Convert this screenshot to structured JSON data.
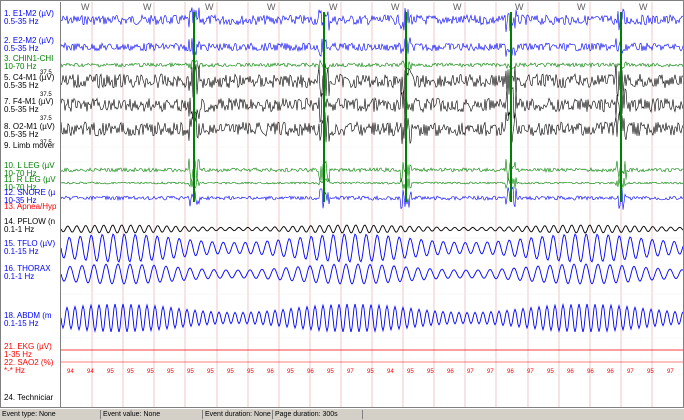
{
  "channels": [
    {
      "id": "e1m2",
      "name": "1. E1-M2 (µV)",
      "filter": "0.5-35 Hz",
      "color": "#0000ff"
    },
    {
      "id": "e2m2",
      "name": "2. E2-M2 (µV)",
      "filter": "0.5-35 Hz",
      "color": "#0000ff"
    },
    {
      "id": "chin",
      "name": "3. CHIN1-CHI",
      "filter": "10-70 Hz",
      "color": "#008000"
    },
    {
      "id": "c4m1",
      "name": "5. C4-M1 (µV)",
      "filter": "0.5-35 Hz",
      "color": "#000000"
    },
    {
      "id": "f4m1",
      "name": "7. F4-M1 (µV)",
      "filter": "0.5-35 Hz",
      "color": "#000000"
    },
    {
      "id": "o2m1",
      "name": "8. O2-M1 (µV)",
      "filter": "0.5-35 Hz",
      "color": "#000000"
    },
    {
      "id": "limb",
      "name": "9. Limb mover",
      "filter": "",
      "color": "#000000"
    },
    {
      "id": "lleg",
      "name": "10. L LEG (µV",
      "filter": "10-70 Hz",
      "color": "#008000"
    },
    {
      "id": "rleg",
      "name": "11. R LEG (µV",
      "filter": "10-70 Hz",
      "color": "#008000"
    },
    {
      "id": "snore",
      "name": "12. SNORE (µ",
      "filter": "10-35 Hz",
      "color": "#0000ff"
    },
    {
      "id": "apnea",
      "name": "13. Apnea/Hyp",
      "filter": "",
      "color": "#ff0000"
    },
    {
      "id": "pflow",
      "name": "14. PFLOW (n",
      "filter": "0.1-1 Hz",
      "color": "#000000"
    },
    {
      "id": "tflo",
      "name": "15. TFLO (µV)",
      "filter": "0.1-15 Hz",
      "color": "#0000ff"
    },
    {
      "id": "thorax",
      "name": "16. THORAX",
      "filter": "0.1-1 Hz",
      "color": "#0000ff"
    },
    {
      "id": "abdm",
      "name": "18. ABDM (m",
      "filter": "0.1-15 Hz",
      "color": "#0000ff"
    },
    {
      "id": "ekg",
      "name": "21. EKG (µV)",
      "filter": "1-35 Hz",
      "color": "#ff0000"
    },
    {
      "id": "sao2",
      "name": "22. SAO2 (%)",
      "filter": "*-* Hz",
      "color": "#ff0000"
    },
    {
      "id": "tech",
      "name": "24. Techniciar",
      "filter": "",
      "color": "#000000"
    }
  ],
  "scale_marks": [
    "37.5",
    "37.5",
    "37.5",
    "37.5"
  ],
  "position_labels": [
    "W",
    "W",
    "W",
    "W",
    "W",
    "W",
    "W",
    "W",
    "W",
    "W"
  ],
  "sao2_values": [
    "94",
    "94",
    "95",
    "95",
    "95",
    "95",
    "95",
    "95",
    "95",
    "95",
    "96",
    "95",
    "96",
    "95",
    "97",
    "95",
    "94",
    "95",
    "95",
    "96",
    "97",
    "97",
    "96",
    "97",
    "95",
    "96",
    "96",
    "96",
    "97",
    "95",
    "97"
  ],
  "status_bar": {
    "event_type": "Event type: None",
    "event_value": "Event value: None",
    "event_duration": "Event duration: None",
    "page_duration": "Page duration: 300s"
  }
}
